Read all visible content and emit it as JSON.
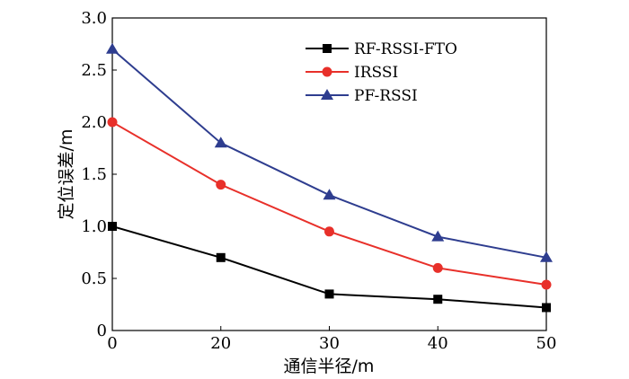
{
  "chart_data": {
    "type": "line",
    "title": "",
    "xlabel": "通信半径/m",
    "ylabel": "定位误差/m",
    "x": [
      0,
      20,
      30,
      40,
      50
    ],
    "x_tick_labels": [
      "0",
      "20",
      "30",
      "40",
      "50"
    ],
    "y_tick_labels": [
      "0",
      "0.5",
      "1.0",
      "1.5",
      "2.0",
      "2.5",
      "3.0"
    ],
    "y_ticks": [
      0,
      0.5,
      1.0,
      1.5,
      2.0,
      2.5,
      3.0
    ],
    "ylim": [
      0,
      3.0
    ],
    "grid": false,
    "legend_position": "top-right",
    "series": [
      {
        "name": "RF-RSSI-FTO",
        "color": "#000000",
        "marker": "square",
        "values": [
          1.0,
          0.7,
          0.35,
          0.3,
          0.22
        ]
      },
      {
        "name": "IRSSI",
        "color": "#e8302a",
        "marker": "circle",
        "values": [
          2.0,
          1.4,
          0.95,
          0.6,
          0.44
        ]
      },
      {
        "name": "PF-RSSI",
        "color": "#2e3d8f",
        "marker": "triangle",
        "values": [
          2.7,
          1.8,
          1.3,
          0.9,
          0.7
        ]
      }
    ]
  }
}
